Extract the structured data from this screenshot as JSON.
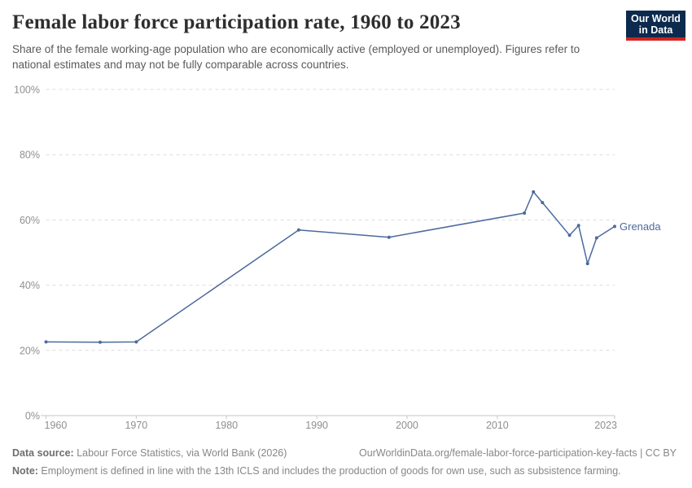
{
  "header": {
    "title": "Female labor force participation rate, 1960 to 2023",
    "subtitle": "Share of the female working-age population who are economically active (employed or unemployed). Figures refer to national estimates and may not be fully comparable across countries.",
    "logo": {
      "line1": "Our World",
      "line2": "in Data",
      "bg_color": "#0b2a4e",
      "accent_color": "#cf2420"
    }
  },
  "chart_data": {
    "type": "line",
    "title": "Female labor force participation rate, 1960 to 2023",
    "xlabel": "",
    "ylabel": "",
    "xlim": [
      1960,
      2023
    ],
    "ylim": [
      0,
      100
    ],
    "xticks": [
      1960,
      1970,
      1980,
      1990,
      2000,
      2010,
      2023
    ],
    "yticks": [
      0,
      20,
      40,
      60,
      80,
      100
    ],
    "ytick_suffix": "%",
    "grid": "dashed-horizontal",
    "legend": "end-of-line-label",
    "series": [
      {
        "name": "Grenada",
        "color": "#4C6A9C",
        "points": [
          [
            1960,
            22.6
          ],
          [
            1966,
            22.5
          ],
          [
            1970,
            22.6
          ],
          [
            1988,
            56.9
          ],
          [
            1998,
            54.7
          ],
          [
            2013,
            62.1
          ],
          [
            2014,
            68.6
          ],
          [
            2015,
            65.3
          ],
          [
            2018,
            55.3
          ],
          [
            2019,
            58.3
          ],
          [
            2020,
            46.6
          ],
          [
            2021,
            54.5
          ],
          [
            2023,
            58.0
          ]
        ]
      }
    ]
  },
  "footer": {
    "datasource_label": "Data source:",
    "datasource_text": " Labour Force Statistics, via World Bank (2026)",
    "link": "OurWorldinData.org/female-labor-force-participation-key-facts | CC BY",
    "note_label": "Note:",
    "note_text": " Employment is defined in line with the 13th ICLS and includes the production of goods for own use, such as subsistence farming."
  }
}
